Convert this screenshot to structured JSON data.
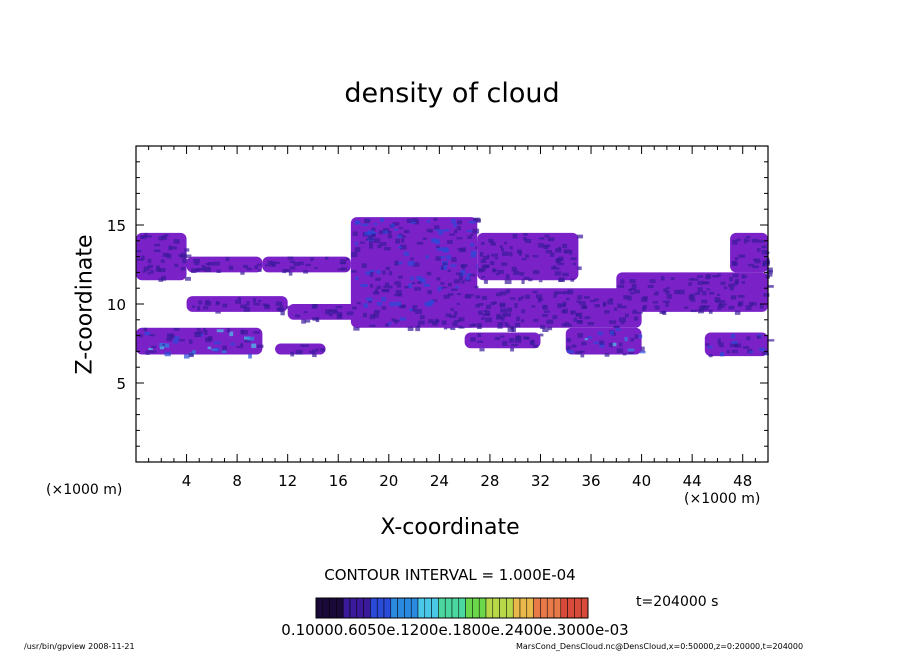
{
  "chart_data": {
    "type": "heatmap",
    "title": "density of cloud",
    "xlabel": "X-coordinate",
    "ylabel": "Z-coordinate",
    "x_unit": "(×1000 m)",
    "y_unit": "(×1000 m)",
    "xlim": [
      0,
      50
    ],
    "ylim": [
      0,
      20
    ],
    "x_ticks": [
      4,
      8,
      12,
      16,
      20,
      24,
      28,
      32,
      36,
      40,
      44,
      48
    ],
    "y_ticks": [
      5,
      10,
      15
    ],
    "colormap": [
      "#1a0a3a",
      "#3a1a9a",
      "#2a4ad8",
      "#2a8ae0",
      "#4ac8e8",
      "#4ad8a0",
      "#6ad84a",
      "#b8d84a",
      "#e8b84a",
      "#e87a4a",
      "#d84a3a"
    ],
    "cloud_color": "#7a22c8",
    "cloud_regions": [
      {
        "x": [
          0,
          4
        ],
        "z": [
          11.5,
          14.5
        ],
        "level": 1
      },
      {
        "x": [
          4,
          10
        ],
        "z": [
          12,
          13
        ],
        "level": 1
      },
      {
        "x": [
          10,
          17
        ],
        "z": [
          12,
          13
        ],
        "level": 1
      },
      {
        "x": [
          17,
          27
        ],
        "z": [
          8.5,
          15.5
        ],
        "level": 2
      },
      {
        "x": [
          27,
          35
        ],
        "z": [
          11.5,
          14.5
        ],
        "level": 1
      },
      {
        "x": [
          24,
          40
        ],
        "z": [
          8.5,
          11
        ],
        "level": 1
      },
      {
        "x": [
          38,
          50
        ],
        "z": [
          9.5,
          12
        ],
        "level": 1
      },
      {
        "x": [
          47,
          50
        ],
        "z": [
          12,
          14.5
        ],
        "level": 1
      },
      {
        "x": [
          4,
          12
        ],
        "z": [
          9.5,
          10.5
        ],
        "level": 1
      },
      {
        "x": [
          12,
          18
        ],
        "z": [
          9,
          10
        ],
        "level": 1
      },
      {
        "x": [
          0,
          10
        ],
        "z": [
          6.8,
          8.5
        ],
        "level": 3
      },
      {
        "x": [
          11,
          15
        ],
        "z": [
          6.8,
          7.5
        ],
        "level": 1
      },
      {
        "x": [
          26,
          32
        ],
        "z": [
          7.2,
          8.2
        ],
        "level": 1
      },
      {
        "x": [
          34,
          40
        ],
        "z": [
          6.8,
          8.5
        ],
        "level": 3
      },
      {
        "x": [
          45,
          50
        ],
        "z": [
          6.7,
          8.2
        ],
        "level": 2
      }
    ],
    "contour_interval": "CONTOUR INTERVAL = 1.000E-04",
    "time_label": "t=204000  s",
    "colorbar_labels": "0.10000.6050e.1200e.1800e.2400e.3000e-03"
  },
  "footer": {
    "left": "/usr/bin/gpview   2008-11-21",
    "right": "MarsCond_DensCloud.nc@DensCloud,x=0:50000,z=0:20000,t=204000"
  }
}
